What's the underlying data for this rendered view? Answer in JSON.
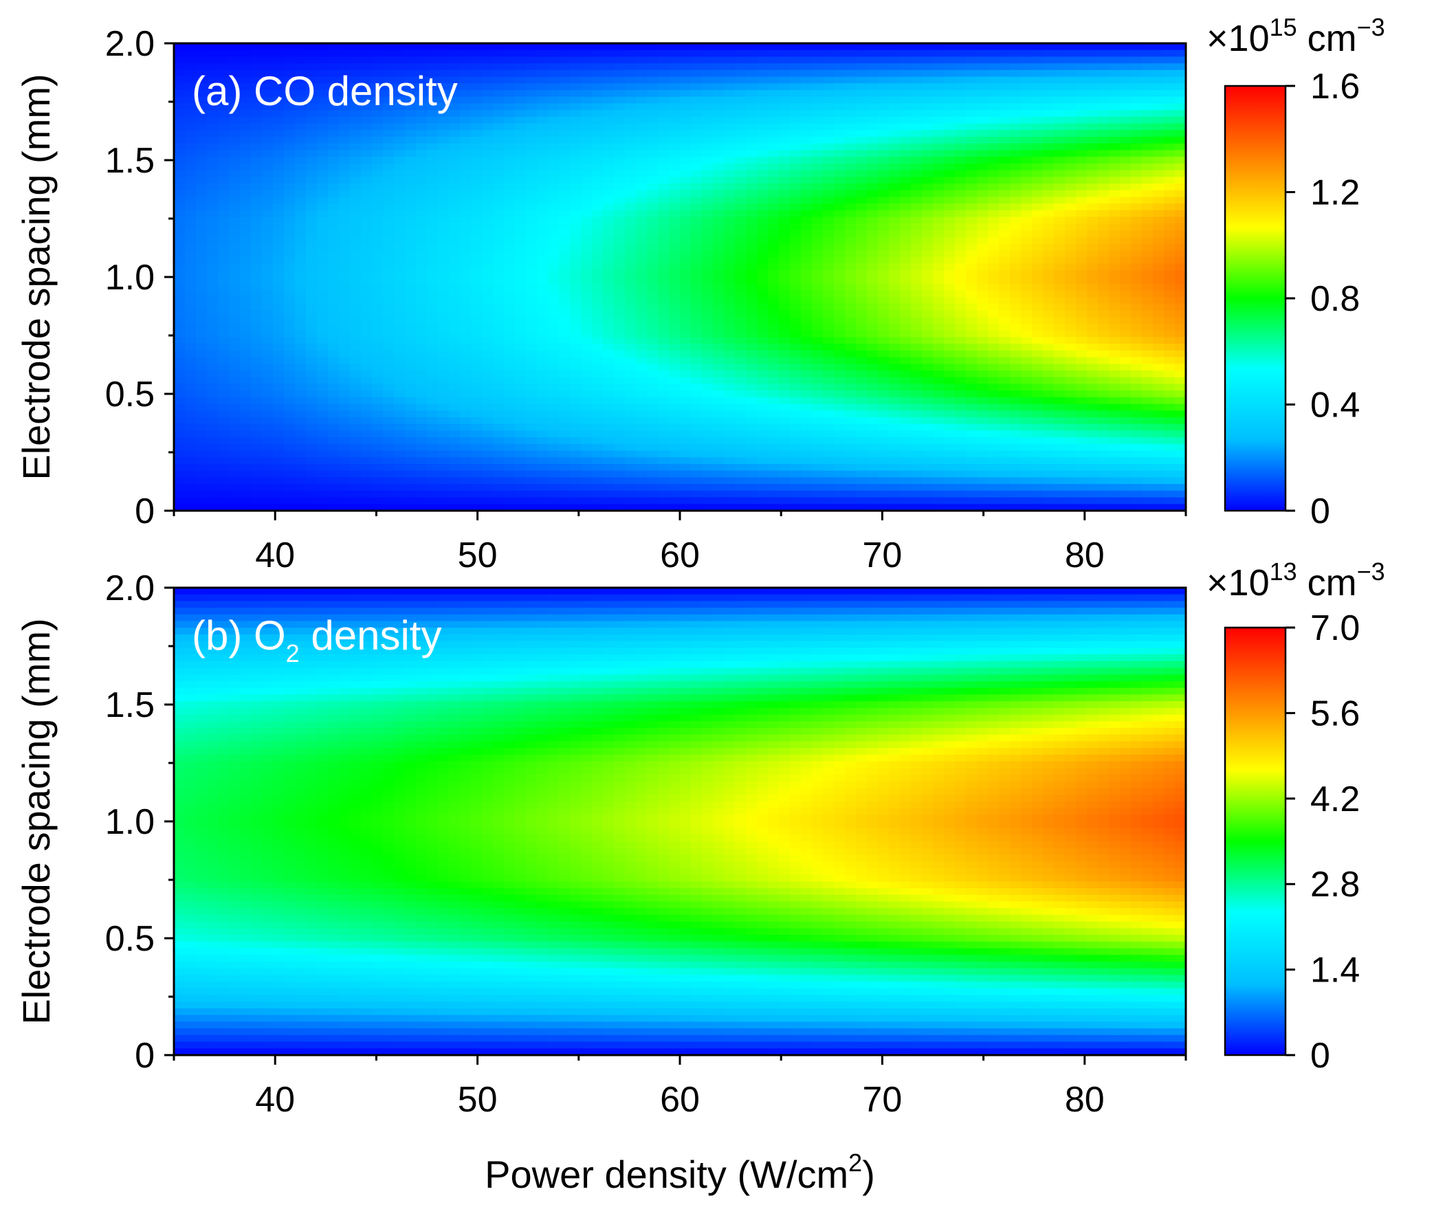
{
  "chart_data": [
    {
      "type": "heatmap",
      "panel": "a",
      "label_prefix": "(a) CO",
      "label_subscript": "",
      "label_suffix": " density",
      "xlim": [
        35,
        85
      ],
      "ylim": [
        0,
        2.0
      ],
      "x_ticks": [
        40,
        50,
        60,
        70,
        80
      ],
      "x_tick_labels": [
        "40",
        "50",
        "60",
        "70",
        "80"
      ],
      "y_ticks": [
        0,
        0.5,
        1.0,
        1.5,
        2.0
      ],
      "y_tick_labels": [
        "0",
        "0.5",
        "1.0",
        "1.5",
        "2.0"
      ],
      "ylabel": "Electrode spacing (mm)",
      "colorbar": {
        "min": 0,
        "max": 1.6,
        "ticks": [
          0,
          0.4,
          0.8,
          1.2,
          1.6
        ],
        "tick_labels": [
          "0",
          "0.4",
          "0.8",
          "1.2",
          "1.6"
        ],
        "unit_prefix": "×10",
        "unit_exponent": "15",
        "unit_suffix": " cm",
        "unit_suffix_exponent": "−3"
      },
      "field_description": "density peaks at electrode spacing ≈1.0 mm and rises with power density",
      "grid_x": [
        35,
        40,
        45,
        50,
        55,
        60,
        65,
        70,
        75,
        80,
        85
      ],
      "grid_y": [
        0,
        0.25,
        0.5,
        0.75,
        1.0,
        1.25,
        1.5,
        1.75,
        2.0
      ],
      "values": [
        [
          0.0,
          0.0,
          0.0,
          0.0,
          0.0,
          0.0,
          0.0,
          0.0,
          0.0,
          0.0,
          0.0
        ],
        [
          0.07,
          0.09,
          0.13,
          0.17,
          0.22,
          0.27,
          0.32,
          0.37,
          0.42,
          0.47,
          0.52
        ],
        [
          0.12,
          0.17,
          0.24,
          0.32,
          0.41,
          0.5,
          0.59,
          0.68,
          0.78,
          0.87,
          0.96
        ],
        [
          0.16,
          0.22,
          0.32,
          0.42,
          0.54,
          0.66,
          0.78,
          0.9,
          1.02,
          1.14,
          1.26
        ],
        [
          0.17,
          0.24,
          0.34,
          0.46,
          0.58,
          0.71,
          0.84,
          0.97,
          1.11,
          1.24,
          1.37
        ],
        [
          0.16,
          0.22,
          0.32,
          0.42,
          0.54,
          0.66,
          0.78,
          0.9,
          1.02,
          1.14,
          1.26
        ],
        [
          0.12,
          0.17,
          0.24,
          0.32,
          0.41,
          0.5,
          0.59,
          0.68,
          0.78,
          0.87,
          0.96
        ],
        [
          0.07,
          0.09,
          0.13,
          0.17,
          0.22,
          0.27,
          0.32,
          0.37,
          0.42,
          0.47,
          0.52
        ],
        [
          0.0,
          0.0,
          0.0,
          0.0,
          0.0,
          0.0,
          0.0,
          0.0,
          0.0,
          0.0,
          0.0
        ]
      ]
    },
    {
      "type": "heatmap",
      "panel": "b",
      "label_prefix": "(b) O",
      "label_subscript": "2",
      "label_suffix": " density",
      "xlim": [
        35,
        85
      ],
      "ylim": [
        0,
        2.0
      ],
      "x_ticks": [
        40,
        50,
        60,
        70,
        80
      ],
      "x_tick_labels": [
        "40",
        "50",
        "60",
        "70",
        "80"
      ],
      "y_ticks": [
        0,
        0.5,
        1.0,
        1.5,
        2.0
      ],
      "y_tick_labels": [
        "0",
        "0.5",
        "1.0",
        "1.5",
        "2.0"
      ],
      "ylabel": "Electrode spacing (mm)",
      "colorbar": {
        "min": 0,
        "max": 7.0,
        "ticks": [
          0,
          1.4,
          2.8,
          4.2,
          5.6,
          7.0
        ],
        "tick_labels": [
          "0",
          "1.4",
          "2.8",
          "4.2",
          "5.6",
          "7.0"
        ],
        "unit_prefix": "×10",
        "unit_exponent": "13",
        "unit_suffix": " cm",
        "unit_suffix_exponent": "−3"
      },
      "field_description": "density peaks at electrode spacing ≈1.0 mm, high even at low power, rising with power density",
      "grid_x": [
        35,
        40,
        45,
        50,
        55,
        60,
        65,
        70,
        75,
        80,
        85
      ],
      "grid_y": [
        0,
        0.25,
        0.5,
        0.75,
        1.0,
        1.25,
        1.5,
        1.75,
        2.0
      ],
      "values": [
        [
          0.0,
          0.0,
          0.0,
          0.0,
          0.0,
          0.0,
          0.0,
          0.0,
          0.0,
          0.0,
          0.0
        ],
        [
          1.35,
          1.42,
          1.5,
          1.59,
          1.68,
          1.78,
          1.88,
          1.98,
          2.08,
          2.18,
          2.28
        ],
        [
          2.45,
          2.6,
          2.76,
          2.93,
          3.12,
          3.32,
          3.52,
          3.73,
          3.94,
          4.16,
          4.38
        ],
        [
          3.0,
          3.2,
          3.41,
          3.65,
          3.91,
          4.19,
          4.48,
          4.79,
          5.1,
          5.43,
          5.76
        ],
        [
          3.15,
          3.37,
          3.6,
          3.86,
          4.15,
          4.46,
          4.79,
          5.14,
          5.5,
          5.88,
          6.27
        ],
        [
          3.0,
          3.2,
          3.41,
          3.65,
          3.91,
          4.19,
          4.48,
          4.79,
          5.1,
          5.43,
          5.76
        ],
        [
          2.45,
          2.6,
          2.76,
          2.93,
          3.12,
          3.32,
          3.52,
          3.73,
          3.94,
          4.16,
          4.38
        ],
        [
          1.35,
          1.42,
          1.5,
          1.59,
          1.68,
          1.78,
          1.88,
          1.98,
          2.08,
          2.18,
          2.28
        ],
        [
          0.0,
          0.0,
          0.0,
          0.0,
          0.0,
          0.0,
          0.0,
          0.0,
          0.0,
          0.0,
          0.0
        ]
      ]
    }
  ],
  "xlabel_prefix": "Power density (W/cm",
  "xlabel_exponent": "2",
  "xlabel_suffix": ")",
  "colormap_stops": [
    "#0000ff",
    "#00bfff",
    "#00ffff",
    "#00ff00",
    "#ffff00",
    "#ff8000",
    "#ff0000"
  ]
}
